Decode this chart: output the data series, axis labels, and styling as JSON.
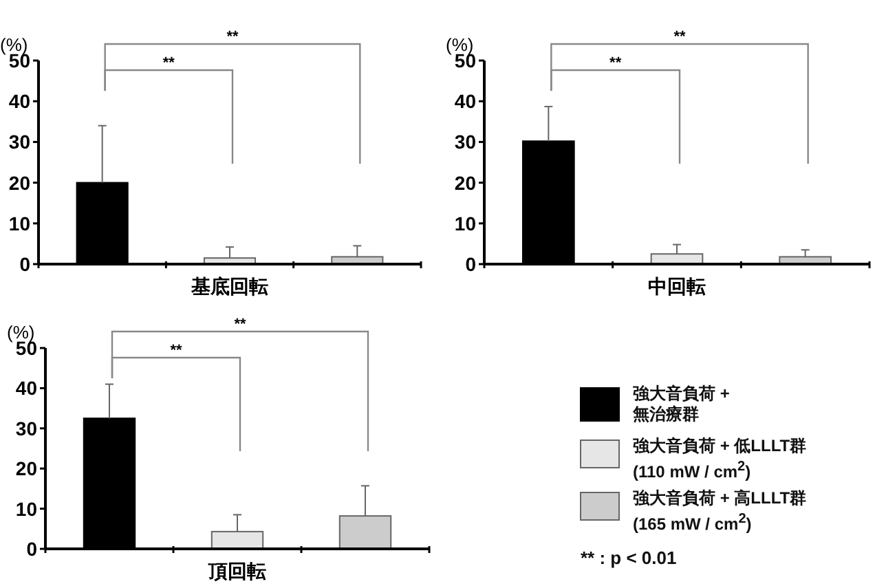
{
  "chart_data": [
    {
      "type": "bar",
      "xlabel": "基底回転",
      "ylabel": "(%)",
      "categories": [
        null,
        null,
        null
      ],
      "ylim": [
        0,
        50
      ],
      "yticks": [
        0,
        10,
        20,
        30,
        40,
        50
      ],
      "grid": false,
      "legend": false,
      "values": [
        20,
        1.5,
        1.8
      ],
      "colors": [
        "#000000",
        "#e6e6e6",
        "#cccccc"
      ],
      "errors": [
        [
          20,
          34
        ],
        [
          1.5,
          4.2
        ],
        [
          1.8,
          4.5
        ]
      ],
      "annotations": [
        "**",
        "**"
      ]
    },
    {
      "type": "bar",
      "xlabel": "中回転",
      "ylabel": "(%)",
      "categories": [
        null,
        null,
        null
      ],
      "ylim": [
        0,
        50
      ],
      "yticks": [
        0,
        10,
        20,
        30,
        40,
        50
      ],
      "grid": false,
      "legend": false,
      "values": [
        30.2,
        2.5,
        1.8
      ],
      "colors": [
        "#000000",
        "#e6e6e6",
        "#cccccc"
      ],
      "errors": [
        [
          30.2,
          38.7
        ],
        [
          2.5,
          4.8
        ],
        [
          1.8,
          3.5
        ]
      ],
      "annotations": [
        "**",
        "**"
      ]
    },
    {
      "type": "bar",
      "xlabel": "頂回転",
      "ylabel": "(%)",
      "categories": [
        null
      ],
      "ylim": [
        0,
        50
      ],
      "yticks": [
        0,
        10,
        20,
        30,
        40,
        50
      ],
      "grid": false,
      "legend": "right",
      "series": [
        {
          "name": "強大音負荷 + 無治療群",
          "color": "#000000",
          "values": [
            32.5
          ],
          "errors": [
            [
              32.5,
              41
            ]
          ]
        },
        {
          "name": "強大音負荷 + 低LLLT群 (110 mW / cm$^{2}$)",
          "color": "#e6e6e6",
          "values": [
            4.3
          ],
          "errors": [
            [
              4.3,
              8.5
            ]
          ]
        },
        {
          "name": "強大音負荷 + 高LLLT群 (165 mW / cm$^{2}$)",
          "color": "#cccccc",
          "values": [
            8.2
          ],
          "errors": [
            [
              8.2,
              15.7
            ]
          ]
        }
      ],
      "annotations": [
        "**",
        "**",
        "** : p < 0.01"
      ]
    }
  ]
}
